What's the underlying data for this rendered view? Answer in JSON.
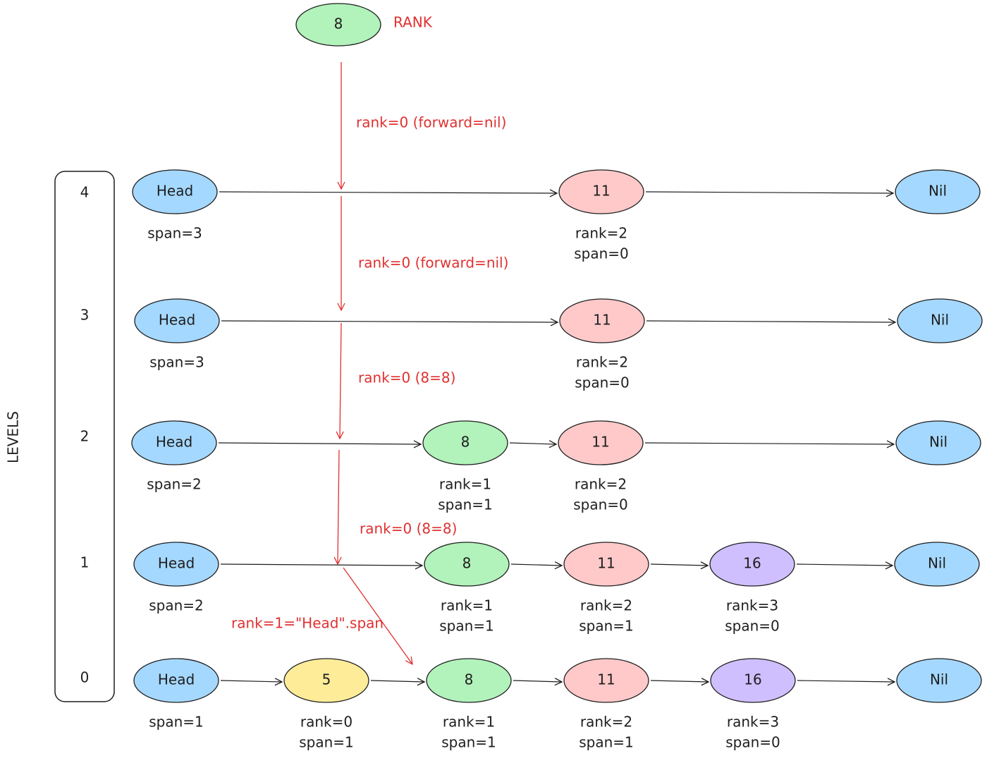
{
  "search_node": {
    "label": "8",
    "color": "#b2f2bb"
  },
  "search_label": "RANK",
  "levels_title": "LEVELS",
  "levels": [
    {
      "level": "4",
      "nodes": [
        {
          "label": "Head",
          "color": "#a5d8ff",
          "notes": [
            "span=3"
          ]
        },
        {
          "label": "11",
          "color": "#ffc9c9",
          "notes": [
            "rank=2",
            "span=0"
          ]
        },
        {
          "label": "Nil",
          "color": "#a5d8ff"
        }
      ]
    },
    {
      "level": "3",
      "nodes": [
        {
          "label": "Head",
          "color": "#a5d8ff",
          "notes": [
            "span=3"
          ]
        },
        {
          "label": "11",
          "color": "#ffc9c9",
          "notes": [
            "rank=2",
            "span=0"
          ]
        },
        {
          "label": "Nil",
          "color": "#a5d8ff"
        }
      ]
    },
    {
      "level": "2",
      "nodes": [
        {
          "label": "Head",
          "color": "#a5d8ff",
          "notes": [
            "span=2"
          ]
        },
        {
          "label": "8",
          "color": "#b2f2bb",
          "notes": [
            "rank=1",
            "span=1"
          ]
        },
        {
          "label": "11",
          "color": "#ffc9c9",
          "notes": [
            "rank=2",
            "span=0"
          ]
        },
        {
          "label": "Nil",
          "color": "#a5d8ff"
        }
      ]
    },
    {
      "level": "1",
      "nodes": [
        {
          "label": "Head",
          "color": "#a5d8ff",
          "notes": [
            "span=2"
          ]
        },
        {
          "label": "8",
          "color": "#b2f2bb",
          "notes": [
            "rank=1",
            "span=1"
          ]
        },
        {
          "label": "11",
          "color": "#ffc9c9",
          "notes": [
            "rank=2",
            "span=1"
          ]
        },
        {
          "label": "16",
          "color": "#d0bfff",
          "notes": [
            "rank=3",
            "span=0"
          ]
        },
        {
          "label": "Nil",
          "color": "#a5d8ff"
        }
      ]
    },
    {
      "level": "0",
      "nodes": [
        {
          "label": "Head",
          "color": "#a5d8ff",
          "notes": [
            "span=1"
          ]
        },
        {
          "label": "5",
          "color": "#ffec99",
          "notes": [
            "rank=0",
            "span=1"
          ]
        },
        {
          "label": "8",
          "color": "#b2f2bb",
          "notes": [
            "rank=1",
            "span=1"
          ]
        },
        {
          "label": "11",
          "color": "#ffc9c9",
          "notes": [
            "rank=2",
            "span=1"
          ]
        },
        {
          "label": "16",
          "color": "#d0bfff",
          "notes": [
            "rank=3",
            "span=0"
          ]
        },
        {
          "label": "Nil",
          "color": "#a5d8ff"
        }
      ]
    }
  ],
  "annotations": [
    "rank=0 (forward=nil)",
    "rank=0 (forward=nil)",
    "rank=0 (8=8)",
    "rank=0 (8=8)",
    "rank=1=\"Head\".span"
  ]
}
